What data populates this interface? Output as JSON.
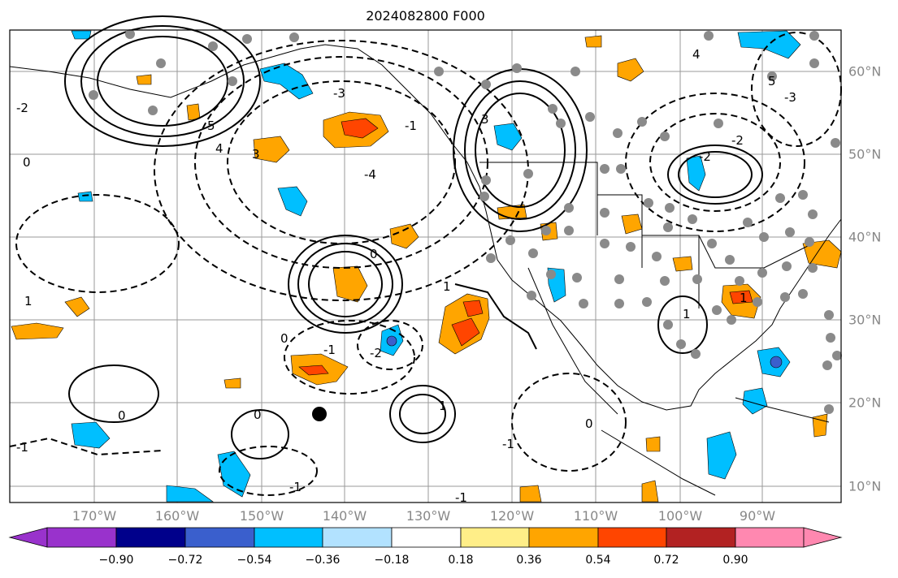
{
  "title": "2024082800 F000",
  "map": {
    "lon_labels": [
      "170°W",
      "160°W",
      "150°W",
      "140°W",
      "130°W",
      "120°W",
      "110°W",
      "100°W",
      "90°W"
    ],
    "lat_labels": [
      "60°N",
      "50°N",
      "40°N",
      "30°N",
      "20°N",
      "10°N"
    ],
    "contour_labels": [
      "5",
      "4",
      "3",
      "-4",
      "-3",
      "-2",
      "1",
      "0",
      "-1",
      "-2",
      "0",
      "1",
      "-1",
      "0",
      "-1",
      "1",
      "-1",
      "1",
      "0",
      "0",
      "1",
      "-1",
      "-2",
      "-3",
      "4",
      "5",
      "3",
      "-2",
      "0",
      "-1"
    ]
  },
  "colorbar": {
    "ticks": [
      "−0.90",
      "−0.72",
      "−0.54",
      "−0.36",
      "−0.18",
      "0.18",
      "0.36",
      "0.54",
      "0.72",
      "0.90"
    ],
    "colors": [
      "#9932cc",
      "#00008b",
      "#3a5fcd",
      "#00bfff",
      "#b2e2ff",
      "#ffffff",
      "#ffee88",
      "#ffa500",
      "#ff4500",
      "#b22222",
      "#ff88b0"
    ]
  }
}
